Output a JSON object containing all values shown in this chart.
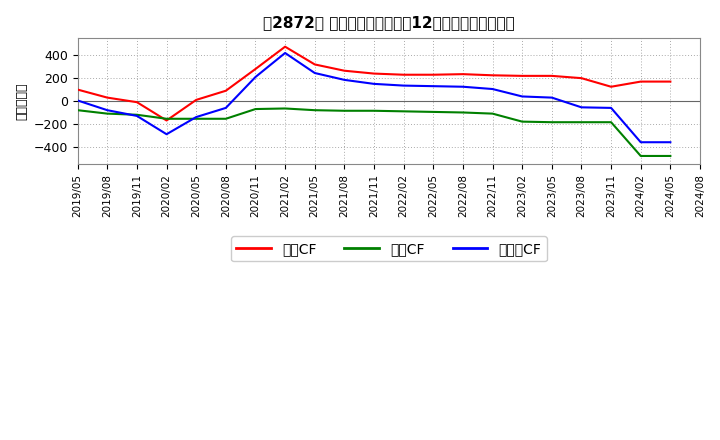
{
  "title": "［2872］ キャッシュフローの12か月移動合計の推移",
  "ylabel": "（百万円）",
  "background_color": "#ffffff",
  "plot_bg_color": "#ffffff",
  "grid_color": "#aaaaaa",
  "xlim_start": "2019/05",
  "xlim_end": "2024/08",
  "ylim": [
    -550,
    550
  ],
  "yticks": [
    -400,
    -200,
    0,
    200,
    400
  ],
  "x_labels": [
    "2019/05",
    "2019/08",
    "2019/11",
    "2020/02",
    "2020/05",
    "2020/08",
    "2020/11",
    "2021/02",
    "2021/05",
    "2021/08",
    "2021/11",
    "2022/02",
    "2022/05",
    "2022/08",
    "2022/11",
    "2023/02",
    "2023/05",
    "2023/08",
    "2023/11",
    "2024/02",
    "2024/05",
    "2024/08"
  ],
  "operating_cf": {
    "label": "営業CF",
    "color": "#ff0000",
    "x": [
      "2019/05",
      "2019/08",
      "2019/11",
      "2020/02",
      "2020/05",
      "2020/08",
      "2020/11",
      "2021/02",
      "2021/05",
      "2021/08",
      "2021/11",
      "2022/02",
      "2022/05",
      "2022/08",
      "2022/11",
      "2023/02",
      "2023/05",
      "2023/08",
      "2023/11",
      "2024/02",
      "2024/05"
    ],
    "y": [
      100,
      30,
      -10,
      -170,
      10,
      90,
      280,
      475,
      320,
      265,
      240,
      230,
      230,
      235,
      225,
      220,
      220,
      200,
      125,
      170,
      170
    ]
  },
  "investing_cf": {
    "label": "投資CF",
    "color": "#008000",
    "x": [
      "2019/05",
      "2019/08",
      "2019/11",
      "2020/02",
      "2020/05",
      "2020/08",
      "2020/11",
      "2021/02",
      "2021/05",
      "2021/08",
      "2021/11",
      "2022/02",
      "2022/05",
      "2022/08",
      "2022/11",
      "2023/02",
      "2023/05",
      "2023/08",
      "2023/11",
      "2024/02",
      "2024/05"
    ],
    "y": [
      -80,
      -110,
      -120,
      -155,
      -155,
      -155,
      -70,
      -65,
      -80,
      -85,
      -85,
      -90,
      -95,
      -100,
      -110,
      -180,
      -185,
      -185,
      -185,
      -480,
      -480
    ]
  },
  "free_cf": {
    "label": "フリーCF",
    "color": "#0000ff",
    "x": [
      "2019/05",
      "2019/08",
      "2019/11",
      "2020/02",
      "2020/05",
      "2020/08",
      "2020/11",
      "2021/02",
      "2021/05",
      "2021/08",
      "2021/11",
      "2022/02",
      "2022/05",
      "2022/08",
      "2022/11",
      "2023/02",
      "2023/05",
      "2023/08",
      "2023/11",
      "2024/02",
      "2024/05"
    ],
    "y": [
      5,
      -80,
      -130,
      -290,
      -140,
      -60,
      210,
      420,
      245,
      185,
      150,
      135,
      130,
      125,
      105,
      40,
      30,
      -55,
      -60,
      -360,
      -360
    ]
  },
  "legend_entries": [
    "営業CF",
    "投資CF",
    "フリーCF"
  ],
  "legend_colors": [
    "#ff0000",
    "#008000",
    "#0000ff"
  ]
}
